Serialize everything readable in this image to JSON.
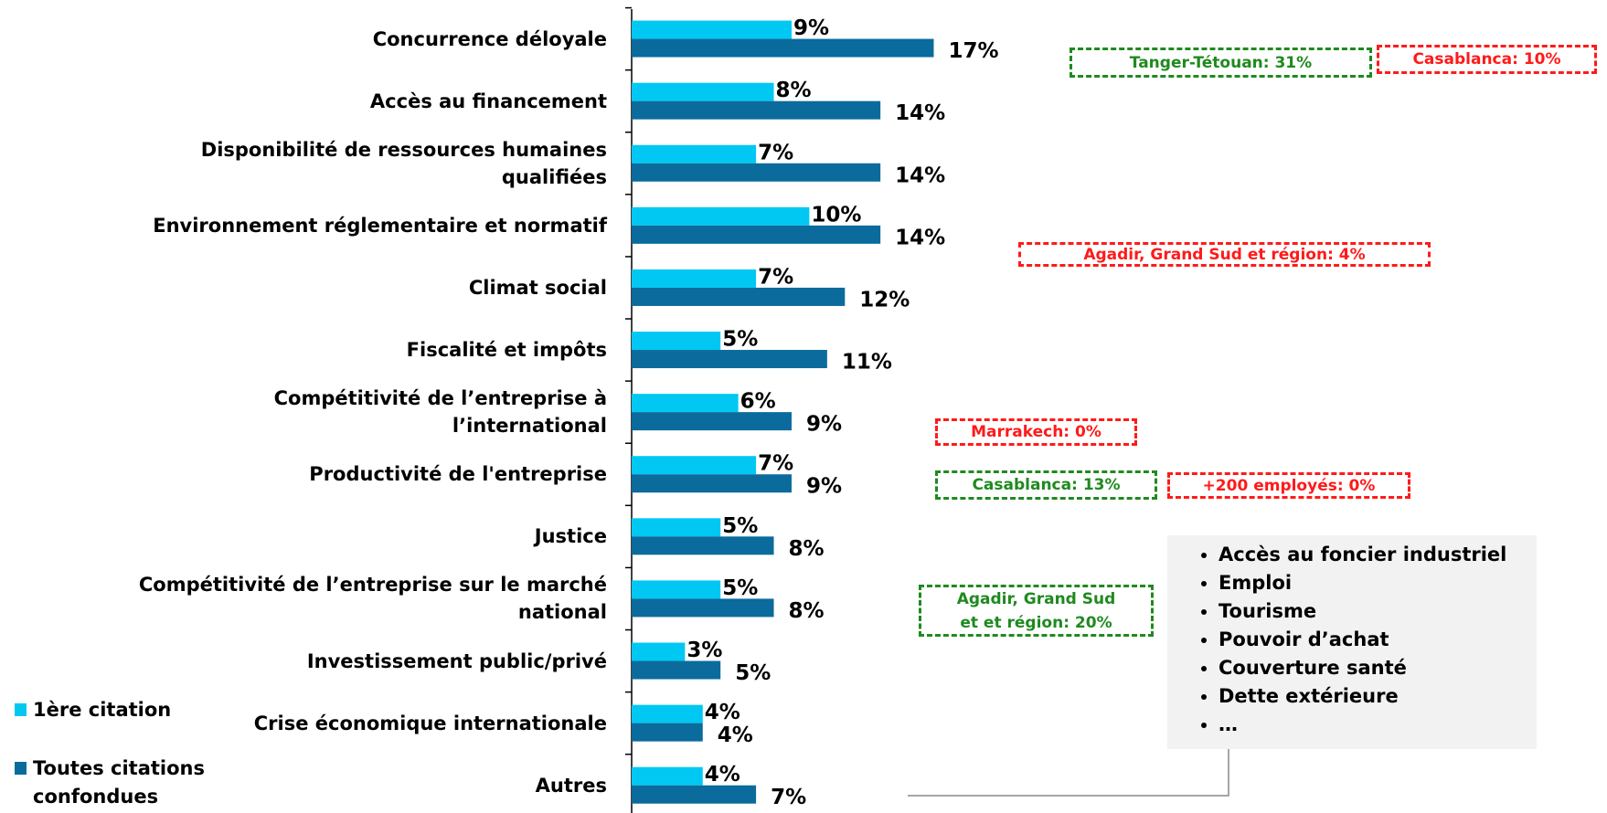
{
  "chart_data": {
    "type": "bar",
    "orientation": "horizontal",
    "categories": [
      "Concurrence déloyale",
      "Accès au financement",
      "Disponibilité de ressources humaines\nqualifiées",
      "Environnement réglementaire et normatif",
      "Climat social",
      "Fiscalité et impôts",
      "Compétitivité de l’entreprise à\nl’international",
      "Productivité de l'entreprise",
      "Justice",
      "Compétitivité de l’entreprise sur le marché\nnational",
      "Investissement public/privé",
      "Crise économique internationale",
      "Autres"
    ],
    "series": [
      {
        "name": "1ère citation",
        "color": "#00c8f2",
        "values": [
          9,
          8,
          7,
          10,
          7,
          5,
          6,
          7,
          5,
          5,
          3,
          4,
          4
        ],
        "value_labels": [
          "9%",
          "8%",
          "7%",
          "10%",
          "7%",
          "5%",
          "6%",
          "7%",
          "5%",
          "5%",
          "3%",
          "4%",
          "4%"
        ]
      },
      {
        "name": "Toutes citations\nconfondues",
        "color": "#0a6b9c",
        "values": [
          17,
          14,
          14,
          14,
          12,
          11,
          9,
          9,
          8,
          8,
          5,
          4,
          7
        ],
        "value_labels": [
          "17%",
          "14%",
          "14%",
          "14%",
          "12%",
          "11%",
          "9%",
          "9%",
          "8%",
          "8%",
          "5%",
          "4%",
          "7%"
        ]
      }
    ],
    "xlim": [
      0,
      50
    ],
    "annotations": [
      {
        "text": "Tanger-Tétouan: 31%",
        "color": "#1f8a1f"
      },
      {
        "text": "Casablanca: 10%",
        "color": "#ff1a1a"
      },
      {
        "text": "Agadir, Grand Sud et région: 4%",
        "color": "#ff1a1a"
      },
      {
        "text": "Marrakech: 0%",
        "color": "#ff1a1a"
      },
      {
        "text": "Casablanca: 13%",
        "color": "#1f8a1f"
      },
      {
        "text": "+200 employés: 0%",
        "color": "#ff1a1a"
      },
      {
        "text": "Agadir, Grand Sud\net et région: 20%",
        "color": "#1f8a1f"
      }
    ],
    "other_items": [
      "Accès au foncier industriel",
      "Emploi",
      "Tourisme",
      "Pouvoir d’achat",
      "Couverture santé",
      "Dette extérieure",
      "…"
    ]
  }
}
